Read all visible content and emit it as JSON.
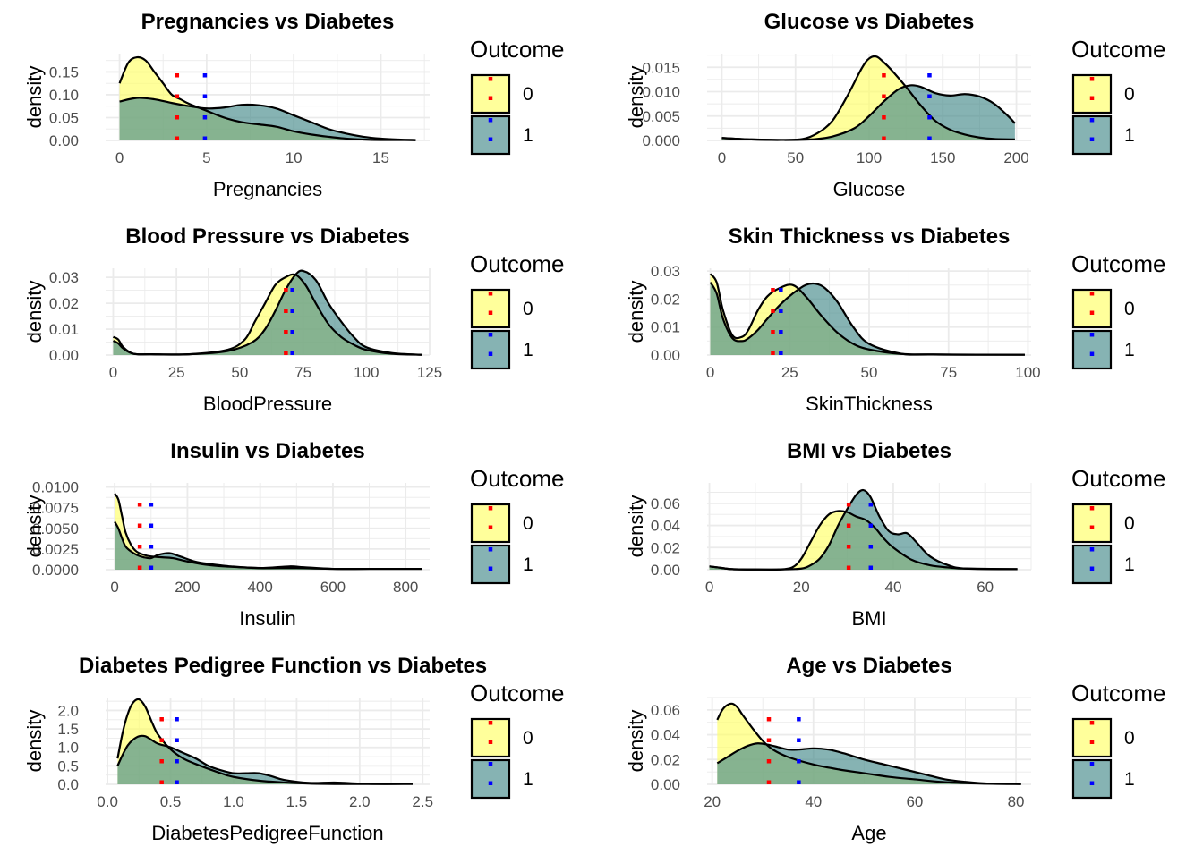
{
  "palette": {
    "outcome0_fill": "#ffff66",
    "outcome1_fill": "#458b8b",
    "overlap_fill": "#7fb36f",
    "mean0_color": "#ff0000",
    "mean1_color": "#0000ff",
    "curve_color": "#000000",
    "grid_color": "#ebebeb"
  },
  "legend": {
    "title": "Outcome",
    "keys": [
      "0",
      "1"
    ]
  },
  "chart_data": [
    {
      "type": "area",
      "title": "Pregnancies vs Diabetes",
      "xlabel": "Pregnancies",
      "ylabel": "density",
      "xlim": [
        -0.8,
        17.8
      ],
      "ylim": [
        0,
        0.19
      ],
      "xticks": [
        0,
        5,
        10,
        15
      ],
      "xtick_labels": [
        "0",
        "5",
        "10",
        "15"
      ],
      "yticks": [
        0,
        0.05,
        0.1,
        0.15
      ],
      "ytick_labels": [
        "0.00",
        "0.05",
        "0.10",
        "0.15"
      ],
      "means": [
        3.3,
        4.9
      ],
      "series": [
        {
          "name": "0",
          "x": [
            0,
            0.5,
            1,
            1.5,
            2,
            2.5,
            3,
            3.5,
            4,
            5,
            6,
            7,
            8,
            9,
            10,
            11,
            12,
            13,
            14,
            15,
            16,
            17
          ],
          "y": [
            0.125,
            0.17,
            0.182,
            0.175,
            0.15,
            0.125,
            0.1,
            0.09,
            0.08,
            0.065,
            0.05,
            0.04,
            0.035,
            0.03,
            0.02,
            0.013,
            0.008,
            0.004,
            0.002,
            0.001,
            0.001,
            0.0005
          ]
        },
        {
          "name": "1",
          "x": [
            0,
            1,
            2,
            3,
            4,
            5,
            6,
            7,
            8,
            9,
            10,
            11,
            12,
            13,
            14,
            15,
            16,
            17
          ],
          "y": [
            0.085,
            0.093,
            0.09,
            0.082,
            0.075,
            0.07,
            0.072,
            0.078,
            0.077,
            0.07,
            0.055,
            0.04,
            0.025,
            0.015,
            0.008,
            0.004,
            0.002,
            0.001
          ]
        }
      ]
    },
    {
      "type": "area",
      "title": "Glucose vs Diabetes",
      "xlabel": "Glucose",
      "ylabel": "density",
      "xlim": [
        -10,
        210
      ],
      "ylim": [
        0,
        0.0178
      ],
      "xticks": [
        0,
        50,
        100,
        150,
        200
      ],
      "xtick_labels": [
        "0",
        "50",
        "100",
        "150",
        "200"
      ],
      "yticks": [
        0,
        0.005,
        0.01,
        0.015
      ],
      "ytick_labels": [
        "0.000",
        "0.005",
        "0.010",
        "0.015"
      ],
      "means": [
        110,
        141
      ],
      "series": [
        {
          "name": "0",
          "x": [
            0,
            20,
            40,
            55,
            65,
            75,
            85,
            95,
            100,
            105,
            110,
            115,
            125,
            135,
            145,
            155,
            165,
            175,
            185,
            199
          ],
          "y": [
            0.0005,
            0.0002,
            0.0001,
            0.0003,
            0.0015,
            0.004,
            0.009,
            0.0148,
            0.0168,
            0.0172,
            0.016,
            0.0145,
            0.011,
            0.0072,
            0.004,
            0.0022,
            0.0012,
            0.0006,
            0.0003,
            0.0002
          ]
        },
        {
          "name": "1",
          "x": [
            0,
            20,
            40,
            60,
            75,
            90,
            100,
            110,
            120,
            128,
            135,
            145,
            155,
            165,
            175,
            185,
            195,
            199
          ],
          "y": [
            0.0005,
            0.0002,
            0.0001,
            0.0002,
            0.0008,
            0.0025,
            0.005,
            0.008,
            0.0105,
            0.0113,
            0.011,
            0.0097,
            0.0092,
            0.0095,
            0.009,
            0.0075,
            0.0048,
            0.0035
          ]
        }
      ]
    },
    {
      "type": "area",
      "title": "Blood Pressure vs Diabetes",
      "xlabel": "BloodPressure",
      "ylabel": "density",
      "xlim": [
        -3,
        125
      ],
      "ylim": [
        0,
        0.0335
      ],
      "xticks": [
        0,
        25,
        50,
        75,
        100,
        125
      ],
      "xtick_labels": [
        "0",
        "25",
        "50",
        "75",
        "100",
        "125"
      ],
      "yticks": [
        0,
        0.01,
        0.02,
        0.03
      ],
      "ytick_labels": [
        "0.00",
        "0.01",
        "0.02",
        "0.03"
      ],
      "means": [
        68.2,
        70.8
      ],
      "series": [
        {
          "name": "0",
          "x": [
            0,
            2,
            4,
            8,
            15,
            30,
            45,
            52,
            56,
            60,
            64,
            68,
            72,
            76,
            80,
            85,
            90,
            95,
            100,
            110,
            122
          ],
          "y": [
            0.007,
            0.006,
            0.003,
            0.0005,
            0.0003,
            0.0003,
            0.002,
            0.006,
            0.013,
            0.02,
            0.027,
            0.03,
            0.031,
            0.027,
            0.02,
            0.012,
            0.007,
            0.004,
            0.002,
            0.0005,
            0.0001
          ]
        },
        {
          "name": "1",
          "x": [
            0,
            2,
            4,
            8,
            15,
            30,
            45,
            55,
            60,
            64,
            68,
            72,
            75,
            80,
            85,
            90,
            95,
            100,
            110,
            122
          ],
          "y": [
            0.0055,
            0.0045,
            0.0025,
            0.0005,
            0.0003,
            0.0003,
            0.0015,
            0.005,
            0.01,
            0.017,
            0.025,
            0.031,
            0.0325,
            0.029,
            0.02,
            0.013,
            0.007,
            0.003,
            0.0008,
            0.0001
          ]
        }
      ]
    },
    {
      "type": "area",
      "title": "Skin Thickness vs Diabetes",
      "xlabel": "SkinThickness",
      "ylabel": "density",
      "xlim": [
        -1,
        101
      ],
      "ylim": [
        0,
        0.031
      ],
      "xticks": [
        0,
        25,
        50,
        75,
        100
      ],
      "xtick_labels": [
        "0",
        "25",
        "50",
        "75",
        "100"
      ],
      "yticks": [
        0,
        0.01,
        0.02,
        0.03
      ],
      "ytick_labels": [
        "0.00",
        "0.01",
        "0.02",
        "0.03"
      ],
      "means": [
        19.7,
        22.2
      ],
      "series": [
        {
          "name": "0",
          "x": [
            0,
            2,
            4,
            7,
            10,
            12,
            15,
            18,
            22,
            26,
            30,
            35,
            40,
            45,
            50,
            60,
            70,
            80,
            99
          ],
          "y": [
            0.029,
            0.026,
            0.016,
            0.007,
            0.0065,
            0.009,
            0.016,
            0.021,
            0.024,
            0.025,
            0.021,
            0.014,
            0.008,
            0.004,
            0.002,
            0.0004,
            0.0002,
            0.0001,
            0.0001
          ]
        },
        {
          "name": "1",
          "x": [
            0,
            2,
            4,
            7,
            10,
            12,
            15,
            18,
            22,
            26,
            30,
            33,
            36,
            40,
            45,
            50,
            60,
            70,
            99
          ],
          "y": [
            0.026,
            0.022,
            0.013,
            0.006,
            0.005,
            0.006,
            0.009,
            0.013,
            0.018,
            0.022,
            0.025,
            0.0255,
            0.024,
            0.019,
            0.01,
            0.004,
            0.0005,
            0.0002,
            0.0001
          ]
        }
      ]
    },
    {
      "type": "area",
      "title": "Insulin vs Diabetes",
      "xlabel": "Insulin",
      "ylabel": "density",
      "xlim": [
        -25,
        866
      ],
      "ylim": [
        0,
        0.0105
      ],
      "xticks": [
        0,
        200,
        400,
        600,
        800
      ],
      "xtick_labels": [
        "0",
        "200",
        "400",
        "600",
        "800"
      ],
      "yticks": [
        0,
        0.0025,
        0.005,
        0.0075,
        0.01
      ],
      "ytick_labels": [
        "0.0000",
        "0.0025",
        "0.0050",
        "0.0075",
        "0.0100"
      ],
      "means": [
        68.8,
        100.3
      ],
      "series": [
        {
          "name": "0",
          "x": [
            0,
            10,
            20,
            30,
            45,
            60,
            80,
            100,
            130,
            160,
            200,
            250,
            300,
            400,
            500,
            600,
            700,
            846
          ],
          "y": [
            0.0092,
            0.0085,
            0.0065,
            0.0045,
            0.003,
            0.0022,
            0.0018,
            0.0016,
            0.0015,
            0.0014,
            0.001,
            0.0006,
            0.0004,
            0.0002,
            0.0002,
            0.0001,
            0.0001,
            0.0001
          ]
        },
        {
          "name": "1",
          "x": [
            0,
            10,
            20,
            30,
            45,
            60,
            80,
            100,
            120,
            150,
            180,
            220,
            260,
            320,
            400,
            480,
            520,
            600,
            700,
            846
          ],
          "y": [
            0.0058,
            0.005,
            0.0038,
            0.0028,
            0.0022,
            0.0018,
            0.0015,
            0.0014,
            0.0018,
            0.002,
            0.0016,
            0.001,
            0.0007,
            0.0004,
            0.0002,
            0.0004,
            0.0003,
            0.0001,
            0.0001,
            0.0001
          ]
        }
      ]
    },
    {
      "type": "area",
      "title": "BMI vs Diabetes",
      "xlabel": "BMI",
      "ylabel": "density",
      "xlim": [
        -0.5,
        70
      ],
      "ylim": [
        0,
        0.0785
      ],
      "xticks": [
        0,
        20,
        40,
        60
      ],
      "xtick_labels": [
        "0",
        "20",
        "40",
        "60"
      ],
      "yticks": [
        0,
        0.02,
        0.04,
        0.06
      ],
      "ytick_labels": [
        "0.00",
        "0.02",
        "0.04",
        "0.06"
      ],
      "means": [
        30.3,
        35.1
      ],
      "series": [
        {
          "name": "0",
          "x": [
            0,
            2,
            5,
            10,
            15,
            18,
            20,
            22,
            24,
            26,
            28,
            30,
            32,
            34,
            36,
            38,
            40,
            44,
            48,
            52,
            56,
            67
          ],
          "y": [
            0.003,
            0.002,
            0.0005,
            0.0002,
            0.0002,
            0.002,
            0.01,
            0.025,
            0.04,
            0.05,
            0.053,
            0.052,
            0.048,
            0.045,
            0.038,
            0.028,
            0.02,
            0.009,
            0.004,
            0.002,
            0.001,
            0.0005
          ]
        },
        {
          "name": "1",
          "x": [
            0,
            2,
            5,
            10,
            15,
            20,
            22,
            24,
            26,
            28,
            30,
            32,
            33.5,
            35,
            37,
            39,
            41,
            43,
            45,
            48,
            52,
            56,
            67
          ],
          "y": [
            0.003,
            0.002,
            0.0005,
            0.0002,
            0.0002,
            0.001,
            0.004,
            0.01,
            0.022,
            0.04,
            0.055,
            0.068,
            0.072,
            0.066,
            0.048,
            0.035,
            0.032,
            0.033,
            0.025,
            0.012,
            0.004,
            0.001,
            0.0005
          ]
        }
      ]
    },
    {
      "type": "area",
      "title": "Diabetes Pedigree Function vs Diabetes",
      "xlabel": "DiabetesPedigreeFunction",
      "ylabel": "density",
      "xlim": [
        -0.015,
        2.555
      ],
      "ylim": [
        0,
        2.35
      ],
      "xticks": [
        0,
        0.5,
        1,
        1.5,
        2,
        2.5
      ],
      "xtick_labels": [
        "0.0",
        "0.5",
        "1.0",
        "1.5",
        "2.0",
        "2.5"
      ],
      "yticks": [
        0,
        0.5,
        1,
        1.5,
        2
      ],
      "ytick_labels": [
        "0.0",
        "0.5",
        "1.0",
        "1.5",
        "2.0"
      ],
      "means": [
        0.43,
        0.55
      ],
      "series": [
        {
          "name": "0",
          "x": [
            0.08,
            0.12,
            0.16,
            0.2,
            0.25,
            0.3,
            0.35,
            0.4,
            0.5,
            0.6,
            0.7,
            0.8,
            0.9,
            1.0,
            1.2,
            1.4,
            1.6,
            1.8,
            2.0,
            2.2,
            2.42
          ],
          "y": [
            0.7,
            1.4,
            1.9,
            2.2,
            2.3,
            2.1,
            1.7,
            1.35,
            0.95,
            0.7,
            0.55,
            0.42,
            0.3,
            0.2,
            0.1,
            0.05,
            0.02,
            0.01,
            0.01,
            0.01,
            0.01
          ]
        },
        {
          "name": "1",
          "x": [
            0.08,
            0.12,
            0.16,
            0.2,
            0.25,
            0.3,
            0.35,
            0.4,
            0.5,
            0.6,
            0.7,
            0.8,
            0.9,
            1.0,
            1.1,
            1.2,
            1.3,
            1.4,
            1.6,
            1.8,
            2.0,
            2.2,
            2.42
          ],
          "y": [
            0.5,
            0.8,
            1.05,
            1.2,
            1.3,
            1.3,
            1.2,
            1.1,
            1.0,
            0.85,
            0.7,
            0.5,
            0.38,
            0.3,
            0.3,
            0.3,
            0.22,
            0.12,
            0.04,
            0.05,
            0.02,
            0.01,
            0.02
          ]
        }
      ]
    },
    {
      "type": "area",
      "title": "Age vs Diabetes",
      "xlabel": "Age",
      "ylabel": "density",
      "xlim": [
        19,
        83
      ],
      "ylim": [
        0,
        0.07
      ],
      "xticks": [
        20,
        40,
        60,
        80
      ],
      "xtick_labels": [
        "20",
        "40",
        "60",
        "80"
      ],
      "yticks": [
        0,
        0.02,
        0.04,
        0.06
      ],
      "ytick_labels": [
        "0.00",
        "0.02",
        "0.04",
        "0.06"
      ],
      "means": [
        31.2,
        37.1
      ],
      "series": [
        {
          "name": "0",
          "x": [
            21,
            22,
            23,
            24,
            25,
            26,
            28,
            30,
            32,
            35,
            40,
            45,
            50,
            55,
            60,
            65,
            70,
            75,
            81
          ],
          "y": [
            0.052,
            0.06,
            0.064,
            0.065,
            0.062,
            0.056,
            0.045,
            0.035,
            0.028,
            0.022,
            0.016,
            0.012,
            0.009,
            0.006,
            0.004,
            0.002,
            0.001,
            0.0005,
            0.0003
          ]
        },
        {
          "name": "1",
          "x": [
            21,
            23,
            25,
            27,
            29,
            31,
            33,
            35,
            37,
            40,
            43,
            46,
            50,
            54,
            58,
            62,
            66,
            70,
            75,
            81
          ],
          "y": [
            0.017,
            0.022,
            0.027,
            0.031,
            0.033,
            0.032,
            0.03,
            0.028,
            0.028,
            0.029,
            0.028,
            0.025,
            0.02,
            0.016,
            0.012,
            0.008,
            0.004,
            0.002,
            0.0005,
            0.0002
          ]
        }
      ]
    }
  ]
}
